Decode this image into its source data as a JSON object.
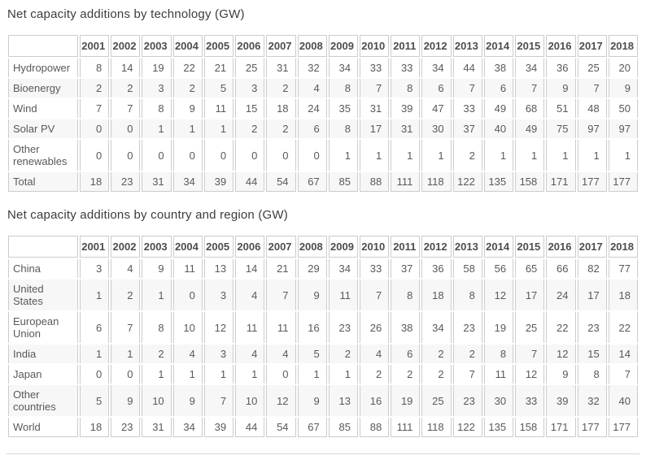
{
  "colors": {
    "border": "#cccccc",
    "stripe": "#f7f7f8",
    "title_text": "#3c3c3c",
    "header_text": "#4d4d4f",
    "cell_text": "#595959",
    "background": "#ffffff"
  },
  "tables": [
    {
      "title": "Net capacity additions by technology (GW)",
      "years": [
        "2001",
        "2002",
        "2003",
        "2004",
        "2005",
        "2006",
        "2007",
        "2008",
        "2009",
        "2010",
        "2011",
        "2012",
        "2013",
        "2014",
        "2015",
        "2016",
        "2017",
        "2018"
      ],
      "rows": [
        {
          "label": "Hydropower",
          "values": [
            8,
            14,
            19,
            22,
            21,
            25,
            31,
            32,
            34,
            33,
            33,
            34,
            44,
            38,
            34,
            36,
            25,
            20
          ]
        },
        {
          "label": "Bioenergy",
          "values": [
            2,
            2,
            3,
            2,
            5,
            3,
            2,
            4,
            8,
            7,
            8,
            6,
            7,
            6,
            7,
            9,
            7,
            9
          ]
        },
        {
          "label": "Wind",
          "values": [
            7,
            7,
            8,
            9,
            11,
            15,
            18,
            24,
            35,
            31,
            39,
            47,
            33,
            49,
            68,
            51,
            48,
            50
          ]
        },
        {
          "label": "Solar PV",
          "values": [
            0,
            0,
            1,
            1,
            1,
            2,
            2,
            6,
            8,
            17,
            31,
            30,
            37,
            40,
            49,
            75,
            97,
            97
          ]
        },
        {
          "label": "Other renewables",
          "values": [
            0,
            0,
            0,
            0,
            0,
            0,
            0,
            0,
            1,
            1,
            1,
            1,
            2,
            1,
            1,
            1,
            1,
            1
          ]
        },
        {
          "label": "Total",
          "values": [
            18,
            23,
            31,
            34,
            39,
            44,
            54,
            67,
            85,
            88,
            111,
            118,
            122,
            135,
            158,
            171,
            177,
            177
          ]
        }
      ]
    },
    {
      "title": "Net capacity additions by country and region (GW)",
      "years": [
        "2001",
        "2002",
        "2003",
        "2004",
        "2005",
        "2006",
        "2007",
        "2008",
        "2009",
        "2010",
        "2011",
        "2012",
        "2013",
        "2014",
        "2015",
        "2016",
        "2017",
        "2018"
      ],
      "rows": [
        {
          "label": "China",
          "values": [
            3,
            4,
            9,
            11,
            13,
            14,
            21,
            29,
            34,
            33,
            37,
            36,
            58,
            56,
            65,
            66,
            82,
            77
          ]
        },
        {
          "label": "United States",
          "values": [
            1,
            2,
            1,
            0,
            3,
            4,
            7,
            9,
            11,
            7,
            8,
            18,
            8,
            12,
            17,
            24,
            17,
            18
          ]
        },
        {
          "label": "European Union",
          "values": [
            6,
            7,
            8,
            10,
            12,
            11,
            11,
            16,
            23,
            26,
            38,
            34,
            23,
            19,
            25,
            22,
            23,
            22
          ]
        },
        {
          "label": "India",
          "values": [
            1,
            1,
            2,
            4,
            3,
            4,
            4,
            5,
            2,
            4,
            6,
            2,
            2,
            8,
            7,
            12,
            15,
            14
          ]
        },
        {
          "label": "Japan",
          "values": [
            0,
            0,
            1,
            1,
            1,
            1,
            0,
            1,
            1,
            2,
            2,
            2,
            7,
            11,
            12,
            9,
            8,
            7
          ]
        },
        {
          "label": "Other countries",
          "values": [
            5,
            9,
            10,
            9,
            7,
            10,
            12,
            9,
            13,
            16,
            19,
            25,
            23,
            30,
            33,
            39,
            32,
            40
          ]
        },
        {
          "label": "World",
          "values": [
            18,
            23,
            31,
            34,
            39,
            44,
            54,
            67,
            85,
            88,
            111,
            118,
            122,
            135,
            158,
            171,
            177,
            177
          ]
        }
      ]
    }
  ]
}
